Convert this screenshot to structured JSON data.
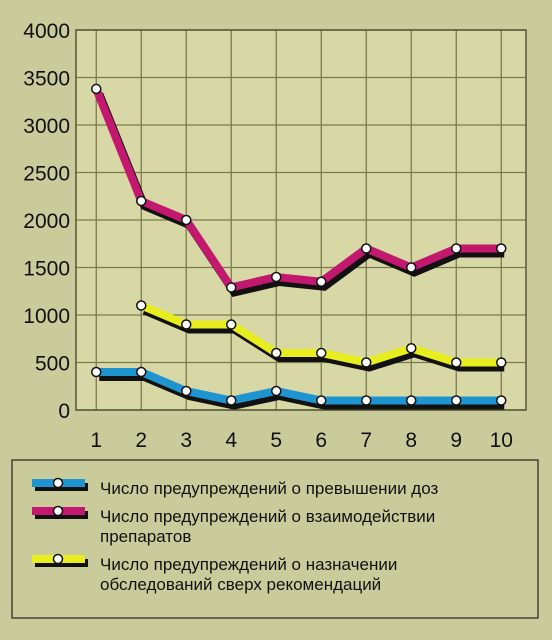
{
  "chart_data": {
    "type": "line",
    "x": [
      1,
      2,
      3,
      4,
      5,
      6,
      7,
      8,
      9,
      10
    ],
    "ylim": [
      0,
      4000
    ],
    "yticks": [
      0,
      500,
      1000,
      1500,
      2000,
      2500,
      3000,
      3500,
      4000
    ],
    "grid": true,
    "legend_position": "bottom",
    "series": [
      {
        "name": "Число предупреждений о превышении доз",
        "color": "#1e95d0",
        "values": [
          400,
          400,
          200,
          100,
          200,
          100,
          100,
          100,
          100,
          100
        ]
      },
      {
        "name": "Число предупреждений о взаимодействии препаратов",
        "color": "#c2186e",
        "values": [
          3380,
          2200,
          2000,
          1290,
          1400,
          1350,
          1700,
          1500,
          1700,
          1700
        ]
      },
      {
        "name": "Число предупреждений о назначении обследований сверх рекомендаций",
        "color": "#e8ed1e",
        "values": [
          null,
          1100,
          900,
          900,
          600,
          600,
          500,
          650,
          500,
          500
        ]
      }
    ],
    "legend_lines": [
      [
        "Число предупреждений о превышении доз"
      ],
      [
        "Число предупреждений о взаимодействии",
        "препаратов"
      ],
      [
        "Число предупреждений о назначении",
        "обследований сверх рекомендаций"
      ]
    ]
  }
}
